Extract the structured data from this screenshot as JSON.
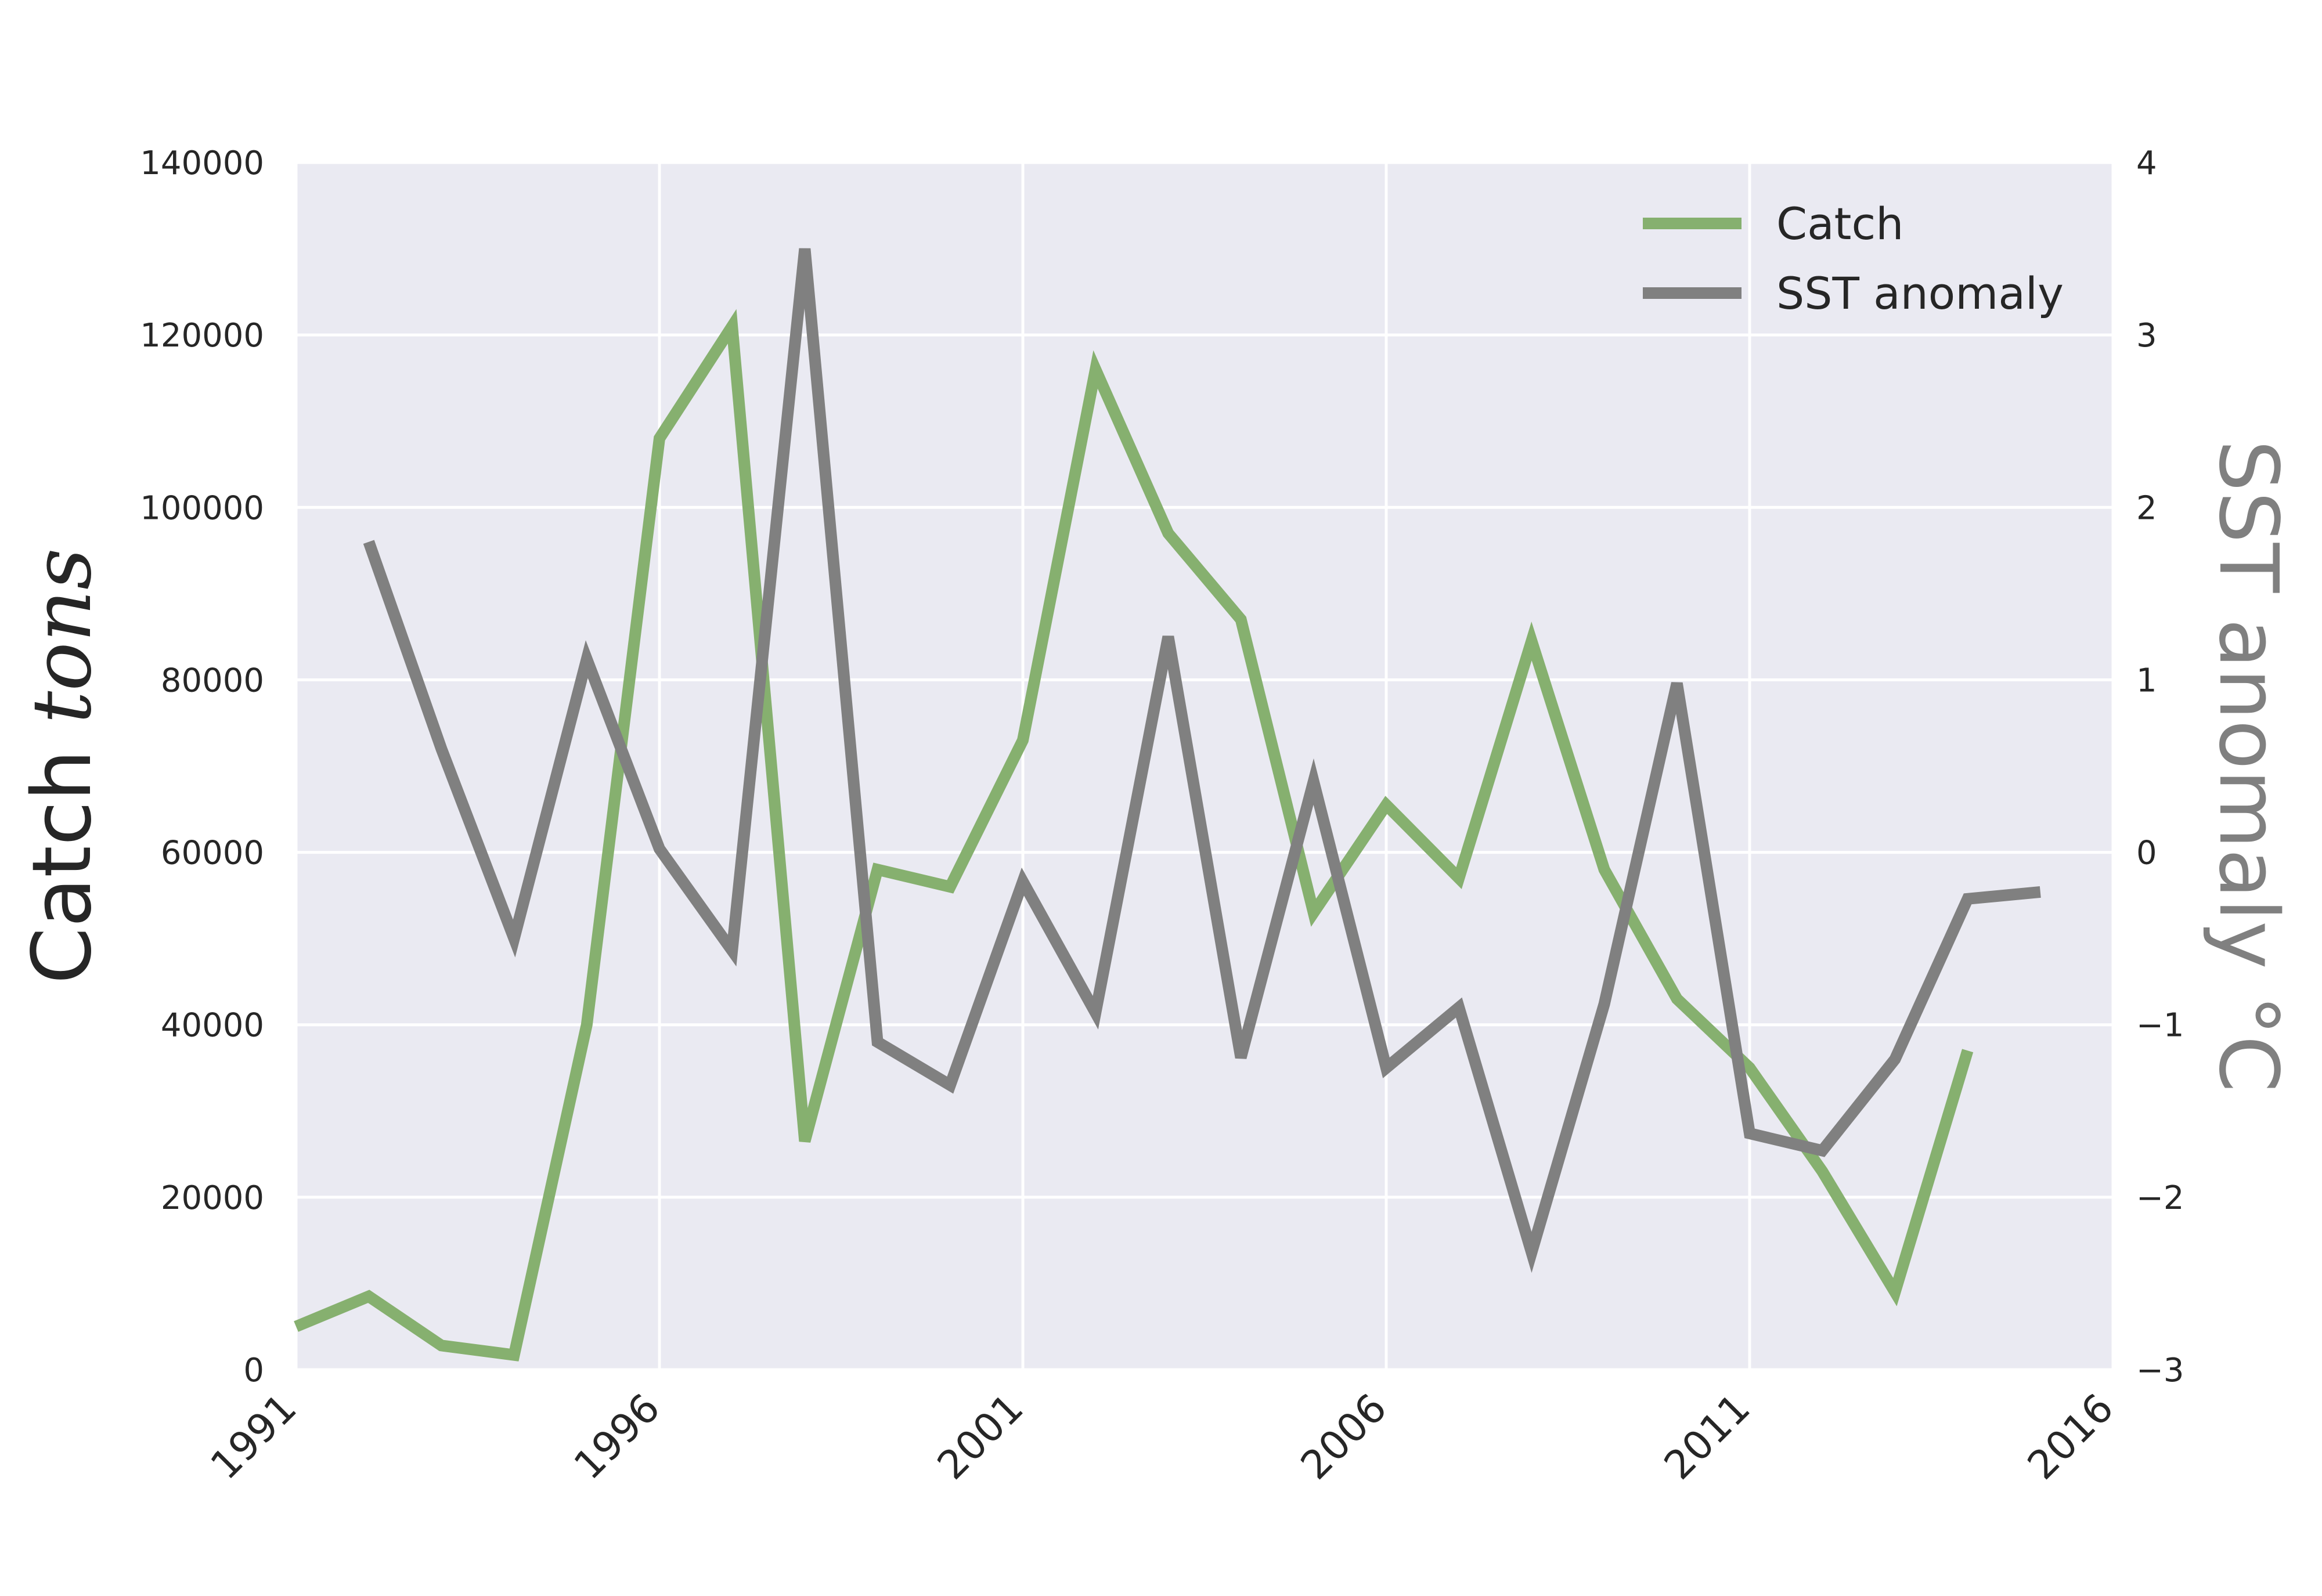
{
  "chart_data": {
    "type": "line",
    "title": "",
    "xlabel": "",
    "x_ticks": [
      "1991",
      "1996",
      "2001",
      "2006",
      "2011",
      "2016"
    ],
    "xlim": [
      1991,
      2016
    ],
    "left_axis": {
      "label_text": "Catch ",
      "label_math": "tons",
      "ylim": [
        0,
        140000
      ],
      "ticks": [
        "0",
        "20000",
        "40000",
        "60000",
        "80000",
        "100000",
        "120000",
        "140000"
      ]
    },
    "right_axis": {
      "label": "SST anomaly °C",
      "ylim": [
        -3,
        4
      ],
      "ticks": [
        "−3",
        "−2",
        "−1",
        "0",
        "1",
        "2",
        "3",
        "4"
      ],
      "color": "#808080"
    },
    "grid": true,
    "legend_placement": "top-right",
    "series": [
      {
        "name": "Catch",
        "axis": "left",
        "color": "#86b06f",
        "x": [
          1991,
          1992,
          1993,
          1994,
          1995,
          1996,
          1997,
          1998,
          1999,
          2000,
          2001,
          2002,
          2003,
          2004,
          2005,
          2006,
          2007,
          2008,
          2009,
          2010,
          2011,
          2012,
          2013,
          2014
        ],
        "values": [
          5000,
          8500,
          2800,
          1700,
          40000,
          108000,
          121000,
          26500,
          58000,
          56000,
          73000,
          116000,
          97000,
          87000,
          53000,
          65500,
          57000,
          84500,
          58000,
          43000,
          35000,
          23000,
          9000,
          37000
        ]
      },
      {
        "name": "SST anomaly",
        "axis": "right",
        "color": "#808080",
        "x": [
          1992,
          1993,
          1994,
          1995,
          1996,
          1997,
          1998,
          1999,
          2000,
          2001,
          2002,
          2003,
          2004,
          2005,
          2006,
          2007,
          2008,
          2009,
          2010,
          2011,
          2012,
          2013,
          2014,
          2015
        ],
        "values": [
          1.8,
          0.6,
          -0.5,
          1.12,
          0.02,
          -0.57,
          3.5,
          -1.1,
          -1.35,
          -0.17,
          -0.93,
          1.25,
          -1.19,
          0.41,
          -1.25,
          -0.9,
          -2.32,
          -0.88,
          0.98,
          -1.63,
          -1.73,
          -1.2,
          -0.27,
          -0.23
        ]
      }
    ]
  }
}
